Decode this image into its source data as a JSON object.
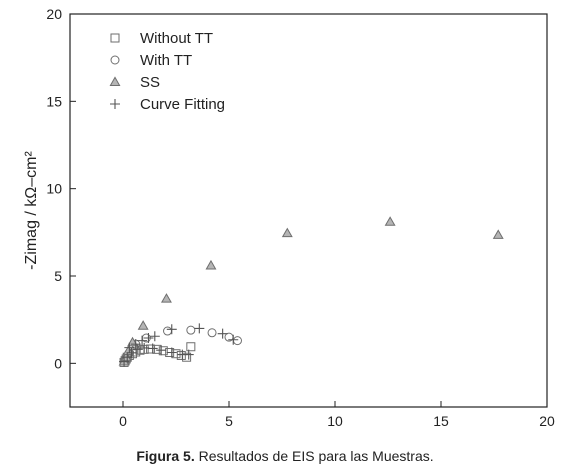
{
  "chart_data": {
    "type": "scatter",
    "title": "",
    "xlabel": "",
    "ylabel": "-Zimag / kΩ–cm²",
    "xlim": [
      -2.5,
      20
    ],
    "ylim": [
      -2.5,
      20
    ],
    "xticks": [
      0,
      5,
      10,
      15,
      20
    ],
    "yticks": [
      0,
      5,
      10,
      15,
      20
    ],
    "grid": false,
    "legend_position": "top-left",
    "series": [
      {
        "name": "Without TT",
        "marker": "square",
        "x": [
          0.05,
          0.1,
          0.15,
          0.2,
          0.3,
          0.45,
          0.6,
          0.8,
          1.0,
          1.3,
          1.6,
          1.9,
          2.2,
          2.5,
          2.75,
          3.0,
          3.2
        ],
        "y": [
          0.05,
          0.15,
          0.25,
          0.35,
          0.45,
          0.55,
          0.65,
          0.75,
          0.8,
          0.82,
          0.8,
          0.72,
          0.62,
          0.55,
          0.45,
          0.35,
          0.95
        ]
      },
      {
        "name": "With TT",
        "marker": "circle",
        "x": [
          0.1,
          0.3,
          0.6,
          1.1,
          2.1,
          3.2,
          4.2,
          5.0,
          5.4
        ],
        "y": [
          0.2,
          0.6,
          1.1,
          1.45,
          1.85,
          1.9,
          1.75,
          1.5,
          1.3
        ]
      },
      {
        "name": "SS",
        "marker": "triangle",
        "x": [
          0.05,
          0.15,
          0.25,
          0.45,
          0.95,
          2.05,
          4.15,
          7.75,
          12.6,
          17.7
        ],
        "y": [
          0.1,
          0.35,
          0.7,
          1.2,
          2.15,
          3.7,
          5.6,
          7.45,
          8.1,
          7.35
        ]
      },
      {
        "name": "Curve Fitting",
        "marker": "plus",
        "x": [
          0.05,
          0.2,
          0.4,
          0.7,
          1.0,
          1.4,
          1.8,
          2.3,
          2.8,
          3.1,
          1.2,
          1.5,
          2.3,
          3.6,
          4.7,
          5.2,
          0.3,
          0.6,
          0.9
        ],
        "y": [
          0.1,
          0.35,
          0.6,
          0.8,
          0.88,
          0.85,
          0.75,
          0.62,
          0.5,
          0.5,
          1.45,
          1.55,
          1.95,
          2.0,
          1.7,
          1.35,
          0.9,
          1.1,
          1.3
        ]
      }
    ],
    "colors": {
      "axis": "#222222",
      "marker_stroke": "#6e6e6e",
      "triangle_fill": "#b5b5b5"
    }
  },
  "caption": {
    "label": "Figura 5.",
    "text": " Resultados de EIS para las Muestras."
  }
}
